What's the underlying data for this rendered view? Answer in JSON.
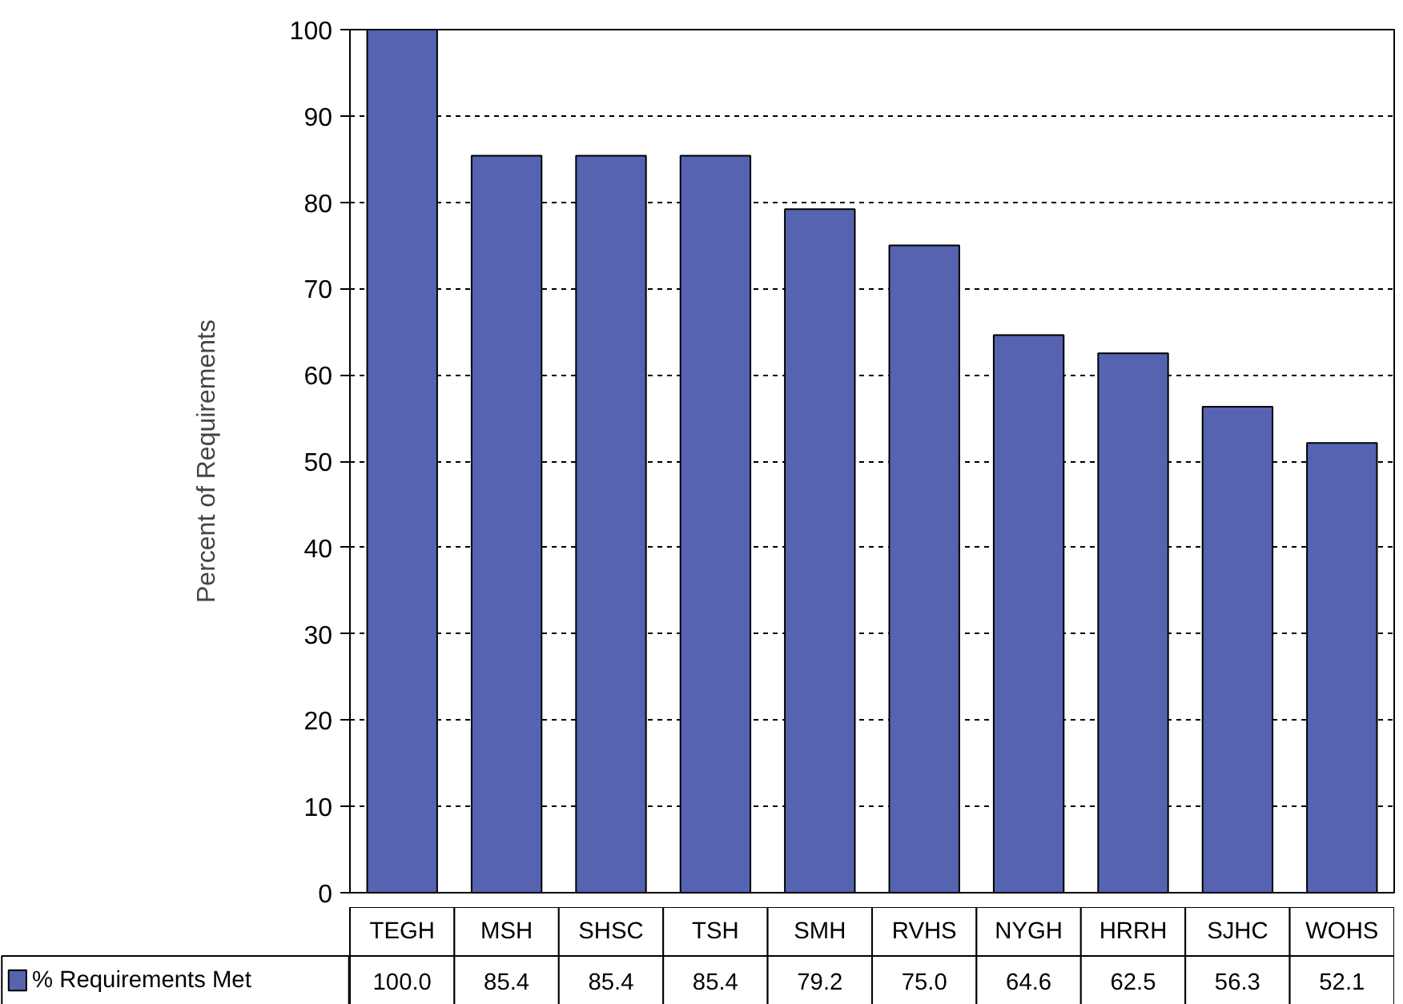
{
  "chart_data": {
    "type": "bar",
    "ylabel": "Percent of Requirements",
    "categories": [
      "TEGH",
      "MSH",
      "SHSC",
      "TSH",
      "SMH",
      "RVHS",
      "NYGH",
      "HRRH",
      "SJHC",
      "WOHS"
    ],
    "series": [
      {
        "name": "% Requirements Met",
        "color": "#5563b0",
        "values": [
          100.0,
          85.4,
          85.4,
          85.4,
          79.2,
          75.0,
          64.6,
          62.5,
          56.3,
          52.1
        ],
        "value_labels": [
          "100.0",
          "85.4",
          "85.4",
          "85.4",
          "79.2",
          "75.0",
          "64.6",
          "62.5",
          "56.3",
          "52.1"
        ]
      }
    ],
    "ylim": [
      0,
      100
    ],
    "yticks": [
      0,
      10,
      20,
      30,
      40,
      50,
      60,
      70,
      80,
      90,
      100
    ],
    "grid": "y",
    "legend": "bottom left"
  }
}
